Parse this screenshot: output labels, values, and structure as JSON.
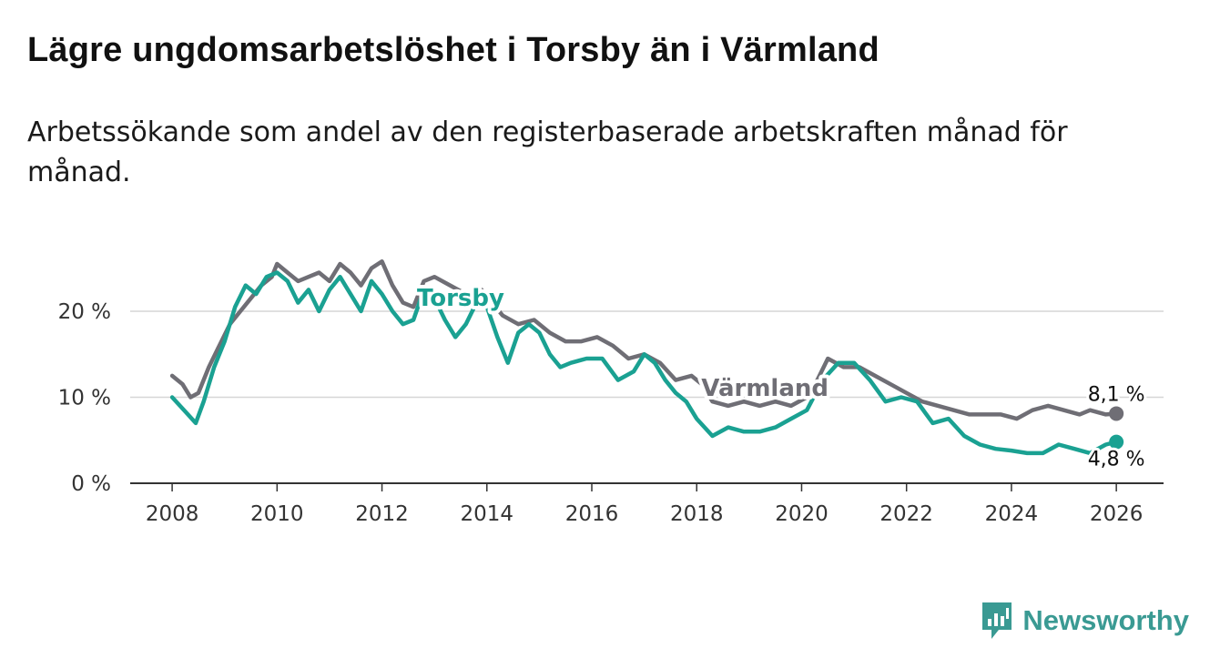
{
  "title": "Lägre ungdomsarbetslöshet i Torsby än i Värmland",
  "subtitle": "Arbetssökande som andel av den registerbaserade arbetskraften månad för månad.",
  "brand": {
    "name": "Newsworthy",
    "icon": "newsworthy-logo-icon",
    "color": "#3a9a93"
  },
  "chart_data": {
    "type": "line",
    "title": "Lägre ungdomsarbetslöshet i Torsby än i Värmland",
    "xlabel": "",
    "ylabel": "",
    "xlim": [
      2007.2,
      2026.9
    ],
    "ylim": [
      0,
      20
    ],
    "x_ticks": [
      2008,
      2010,
      2012,
      2014,
      2016,
      2018,
      2020,
      2022,
      2024,
      2026
    ],
    "x_tick_labels": [
      "2008",
      "2010",
      "2012",
      "2014",
      "2016",
      "2018",
      "2020",
      "2022",
      "2024",
      "2026"
    ],
    "y_ticks": [
      0,
      10,
      20
    ],
    "y_tick_labels": [
      "0 %",
      "10 %",
      "20 %"
    ],
    "grid": true,
    "series": [
      {
        "name": "Värmland",
        "color": "#6f6e75",
        "end_label": "8,1 %",
        "points": [
          [
            2008.0,
            12.5
          ],
          [
            2008.2,
            11.5
          ],
          [
            2008.35,
            10.0
          ],
          [
            2008.5,
            10.5
          ],
          [
            2008.7,
            13.5
          ],
          [
            2008.9,
            16.0
          ],
          [
            2009.1,
            18.5
          ],
          [
            2009.3,
            20.0
          ],
          [
            2009.5,
            21.5
          ],
          [
            2009.7,
            23.0
          ],
          [
            2009.9,
            24.0
          ],
          [
            2010.0,
            25.5
          ],
          [
            2010.2,
            24.5
          ],
          [
            2010.4,
            23.5
          ],
          [
            2010.6,
            24.0
          ],
          [
            2010.8,
            24.5
          ],
          [
            2011.0,
            23.5
          ],
          [
            2011.2,
            25.5
          ],
          [
            2011.4,
            24.5
          ],
          [
            2011.6,
            23.0
          ],
          [
            2011.8,
            25.0
          ],
          [
            2012.0,
            25.8
          ],
          [
            2012.2,
            23.0
          ],
          [
            2012.4,
            21.0
          ],
          [
            2012.6,
            20.5
          ],
          [
            2012.8,
            23.5
          ],
          [
            2013.0,
            24.0
          ],
          [
            2013.3,
            23.0
          ],
          [
            2013.6,
            22.0
          ],
          [
            2013.9,
            22.5
          ],
          [
            2014.1,
            21.0
          ],
          [
            2014.3,
            19.5
          ],
          [
            2014.6,
            18.5
          ],
          [
            2014.9,
            19.0
          ],
          [
            2015.2,
            17.5
          ],
          [
            2015.5,
            16.5
          ],
          [
            2015.8,
            16.5
          ],
          [
            2016.1,
            17.0
          ],
          [
            2016.4,
            16.0
          ],
          [
            2016.7,
            14.5
          ],
          [
            2017.0,
            15.0
          ],
          [
            2017.3,
            14.0
          ],
          [
            2017.6,
            12.0
          ],
          [
            2017.9,
            12.5
          ],
          [
            2018.1,
            11.5
          ],
          [
            2018.3,
            9.5
          ],
          [
            2018.6,
            9.0
          ],
          [
            2018.9,
            9.5
          ],
          [
            2019.2,
            9.0
          ],
          [
            2019.5,
            9.5
          ],
          [
            2019.8,
            9.0
          ],
          [
            2020.1,
            10.0
          ],
          [
            2020.3,
            12.0
          ],
          [
            2020.5,
            14.5
          ],
          [
            2020.8,
            13.5
          ],
          [
            2021.1,
            13.5
          ],
          [
            2021.4,
            12.5
          ],
          [
            2021.7,
            11.5
          ],
          [
            2022.0,
            10.5
          ],
          [
            2022.3,
            9.5
          ],
          [
            2022.6,
            9.0
          ],
          [
            2022.9,
            8.5
          ],
          [
            2023.2,
            8.0
          ],
          [
            2023.5,
            8.0
          ],
          [
            2023.8,
            8.0
          ],
          [
            2024.1,
            7.5
          ],
          [
            2024.4,
            8.5
          ],
          [
            2024.7,
            9.0
          ],
          [
            2025.0,
            8.5
          ],
          [
            2025.3,
            8.0
          ],
          [
            2025.5,
            8.5
          ],
          [
            2025.8,
            8.0
          ],
          [
            2026.0,
            8.1
          ]
        ]
      },
      {
        "name": "Torsby",
        "color": "#1aa192",
        "end_label": "4,8 %",
        "points": [
          [
            2008.0,
            10.0
          ],
          [
            2008.15,
            9.0
          ],
          [
            2008.3,
            8.0
          ],
          [
            2008.45,
            7.0
          ],
          [
            2008.6,
            9.5
          ],
          [
            2008.8,
            13.5
          ],
          [
            2009.0,
            16.5
          ],
          [
            2009.2,
            20.5
          ],
          [
            2009.4,
            23.0
          ],
          [
            2009.6,
            22.0
          ],
          [
            2009.8,
            24.0
          ],
          [
            2010.0,
            24.5
          ],
          [
            2010.2,
            23.5
          ],
          [
            2010.4,
            21.0
          ],
          [
            2010.6,
            22.5
          ],
          [
            2010.8,
            20.0
          ],
          [
            2011.0,
            22.5
          ],
          [
            2011.2,
            24.0
          ],
          [
            2011.4,
            22.0
          ],
          [
            2011.6,
            20.0
          ],
          [
            2011.8,
            23.5
          ],
          [
            2012.0,
            22.0
          ],
          [
            2012.2,
            20.0
          ],
          [
            2012.4,
            18.5
          ],
          [
            2012.6,
            19.0
          ],
          [
            2012.8,
            22.5
          ],
          [
            2013.0,
            21.5
          ],
          [
            2013.2,
            19.0
          ],
          [
            2013.4,
            17.0
          ],
          [
            2013.6,
            18.5
          ],
          [
            2013.8,
            21.0
          ],
          [
            2014.0,
            20.5
          ],
          [
            2014.2,
            17.0
          ],
          [
            2014.4,
            14.0
          ],
          [
            2014.6,
            17.5
          ],
          [
            2014.8,
            18.5
          ],
          [
            2015.0,
            17.5
          ],
          [
            2015.2,
            15.0
          ],
          [
            2015.4,
            13.5
          ],
          [
            2015.6,
            14.0
          ],
          [
            2015.9,
            14.5
          ],
          [
            2016.2,
            14.5
          ],
          [
            2016.5,
            12.0
          ],
          [
            2016.8,
            13.0
          ],
          [
            2017.0,
            15.0
          ],
          [
            2017.2,
            14.0
          ],
          [
            2017.4,
            12.0
          ],
          [
            2017.6,
            10.5
          ],
          [
            2017.8,
            9.5
          ],
          [
            2018.0,
            7.5
          ],
          [
            2018.3,
            5.5
          ],
          [
            2018.6,
            6.5
          ],
          [
            2018.9,
            6.0
          ],
          [
            2019.2,
            6.0
          ],
          [
            2019.5,
            6.5
          ],
          [
            2019.8,
            7.5
          ],
          [
            2020.1,
            8.5
          ],
          [
            2020.4,
            12.0
          ],
          [
            2020.7,
            14.0
          ],
          [
            2021.0,
            14.0
          ],
          [
            2021.3,
            12.0
          ],
          [
            2021.6,
            9.5
          ],
          [
            2021.9,
            10.0
          ],
          [
            2022.2,
            9.5
          ],
          [
            2022.5,
            7.0
          ],
          [
            2022.8,
            7.5
          ],
          [
            2023.1,
            5.5
          ],
          [
            2023.4,
            4.5
          ],
          [
            2023.7,
            4.0
          ],
          [
            2024.0,
            3.8
          ],
          [
            2024.3,
            3.5
          ],
          [
            2024.6,
            3.5
          ],
          [
            2024.9,
            4.5
          ],
          [
            2025.2,
            4.0
          ],
          [
            2025.5,
            3.5
          ],
          [
            2025.8,
            4.5
          ],
          [
            2026.0,
            4.8
          ]
        ]
      }
    ]
  }
}
